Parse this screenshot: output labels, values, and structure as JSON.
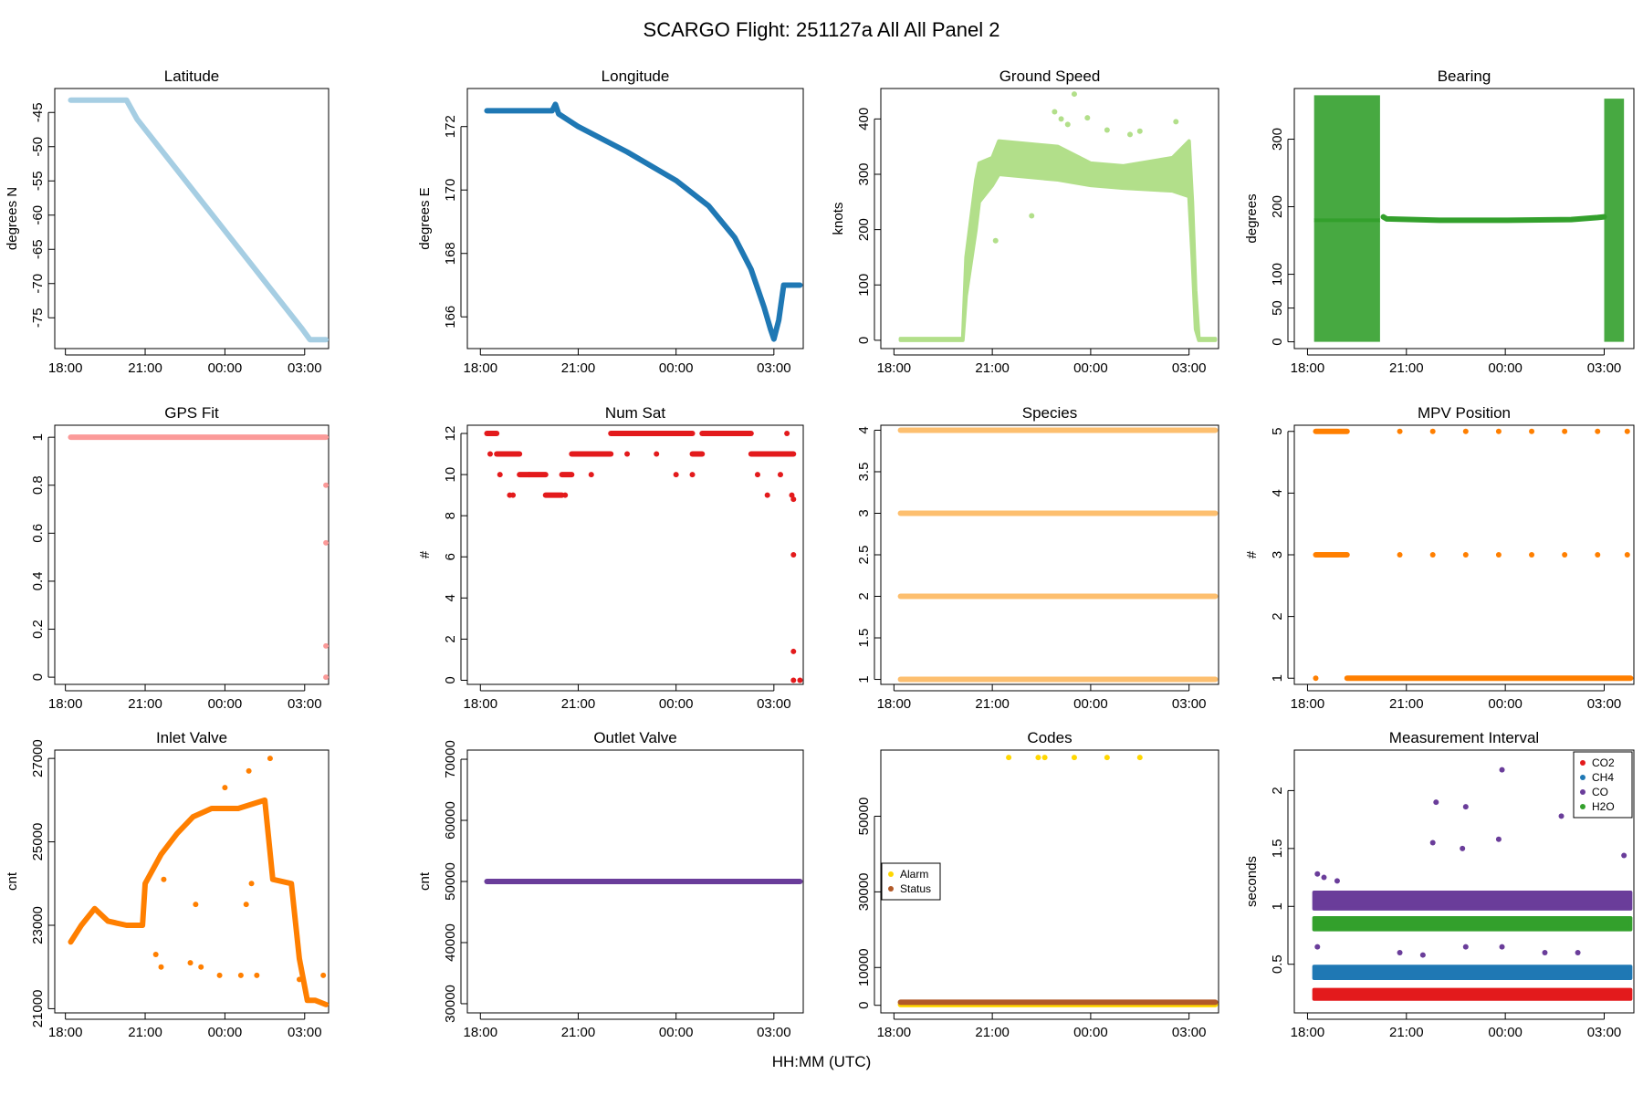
{
  "title": "SCARGO Flight: 251127a  All All  Panel 2",
  "xlabel": "HH:MM (UTC)",
  "x_ticks": [
    {
      "v": 0,
      "label": "18:00"
    },
    {
      "v": 3,
      "label": "21:00"
    },
    {
      "v": 6,
      "label": "00:00"
    },
    {
      "v": 9,
      "label": "03:00"
    }
  ],
  "xlim": [
    -0.4,
    9.9
  ],
  "chart_data": [
    {
      "id": "latitude",
      "type": "scatter",
      "title": "Latitude",
      "ylabel": "degrees N",
      "ylim": [
        -79.5,
        -41.5
      ],
      "yticks": [
        -75,
        -70,
        -65,
        -60,
        -55,
        -50,
        -45
      ],
      "color": "#a6cee3",
      "series": [
        {
          "name": "Latitude",
          "shape": "segments",
          "x": [
            0.2,
            2.3,
            2.7,
            8.9,
            9.2,
            9.8
          ],
          "y": [
            -43.2,
            -43.2,
            -46.0,
            -76.6,
            -78.2,
            -78.2
          ]
        }
      ]
    },
    {
      "id": "longitude",
      "type": "scatter",
      "title": "Longitude",
      "ylabel": "degrees E",
      "ylim": [
        165,
        173.2
      ],
      "yticks": [
        166,
        168,
        170,
        172
      ],
      "color": "#1f78b4",
      "series": [
        {
          "name": "Longitude",
          "shape": "segments",
          "x": [
            0.2,
            2.2,
            2.3,
            2.4,
            3.0,
            4.5,
            6.0,
            7.0,
            7.8,
            8.3,
            8.7,
            8.9,
            9.0,
            9.15,
            9.3,
            9.8
          ],
          "y": [
            172.5,
            172.5,
            172.7,
            172.4,
            172.0,
            171.2,
            170.3,
            169.5,
            168.5,
            167.5,
            166.3,
            165.6,
            165.3,
            165.9,
            167.0,
            167.0
          ]
        }
      ]
    },
    {
      "id": "ground_speed",
      "type": "scatter",
      "title": "Ground Speed",
      "ylabel": "knots",
      "ylim": [
        -15,
        455
      ],
      "yticks": [
        0,
        100,
        200,
        300,
        400
      ],
      "color": "#b2df8a",
      "series": [
        {
          "name": "Ground Speed",
          "shape": "band",
          "x": [
            0.2,
            2.1,
            2.2,
            2.5,
            2.6,
            3.0,
            3.2,
            5.0,
            6.0,
            7.0,
            8.5,
            9.0,
            9.1,
            9.2,
            9.3,
            9.8
          ],
          "lo": [
            0,
            0,
            80,
            200,
            250,
            280,
            300,
            290,
            280,
            275,
            270,
            260,
            150,
            20,
            0,
            0
          ],
          "hi": [
            3,
            3,
            150,
            290,
            320,
            330,
            360,
            350,
            320,
            315,
            330,
            360,
            250,
            90,
            3,
            3
          ]
        }
      ],
      "outliers": [
        [
          4.9,
          413
        ],
        [
          5.1,
          400
        ],
        [
          5.3,
          390
        ],
        [
          5.5,
          445
        ],
        [
          5.9,
          402
        ],
        [
          6.5,
          380
        ],
        [
          7.2,
          372
        ],
        [
          7.5,
          378
        ],
        [
          8.6,
          395
        ],
        [
          4.2,
          225
        ],
        [
          3.1,
          180
        ]
      ]
    },
    {
      "id": "bearing",
      "type": "scatter",
      "title": "Bearing",
      "ylabel": "degrees",
      "ylim": [
        -10,
        375
      ],
      "yticks": [
        0,
        50,
        100,
        200,
        300
      ],
      "color": "#33a02c",
      "series": [
        {
          "name": "Bearing",
          "shape": "segments",
          "x": [
            2.3,
            2.4,
            4.0,
            6.0,
            8.0,
            8.8,
            9.0
          ],
          "y": [
            185,
            182,
            180,
            180,
            181,
            184,
            185
          ]
        }
      ],
      "blocks": [
        [
          0.2,
          2.2,
          0,
          365
        ],
        [
          9.0,
          9.6,
          0,
          360
        ]
      ],
      "lines": [
        [
          0.2,
          2.2,
          180
        ]
      ]
    },
    {
      "id": "gps_fit",
      "type": "scatter",
      "title": "GPS Fit",
      "ylabel": "",
      "ylim": [
        -0.03,
        1.05
      ],
      "yticks": [
        0,
        0.2,
        0.4,
        0.6,
        0.8,
        1.0
      ],
      "color": "#fb9a99",
      "series": [
        {
          "name": "GPS Fit",
          "shape": "segments",
          "x": [
            0.2,
            9.8
          ],
          "y": [
            1.0,
            1.0
          ]
        }
      ],
      "outliers": [
        [
          9.8,
          0.8
        ],
        [
          9.8,
          0.56
        ],
        [
          9.8,
          0.13
        ],
        [
          9.8,
          0.0
        ]
      ]
    },
    {
      "id": "num_sat",
      "type": "scatter",
      "title": "Num Sat",
      "ylabel": "#",
      "ylim": [
        -0.2,
        12.4
      ],
      "yticks": [
        0,
        2,
        4,
        6,
        8,
        10,
        12
      ],
      "color": "#e31a1c",
      "steps": [
        [
          0.2,
          0.5,
          12
        ],
        [
          0.5,
          1.2,
          11
        ],
        [
          1.2,
          1.5,
          10
        ],
        [
          1.5,
          2.0,
          10
        ],
        [
          2.0,
          2.5,
          9
        ],
        [
          2.5,
          2.8,
          10
        ],
        [
          2.8,
          3.5,
          11
        ],
        [
          3.5,
          4.0,
          11
        ],
        [
          4.0,
          6.5,
          12
        ],
        [
          6.5,
          6.8,
          11
        ],
        [
          6.8,
          7.5,
          12
        ],
        [
          7.5,
          8.3,
          12
        ],
        [
          8.3,
          9.0,
          11
        ],
        [
          9.0,
          9.6,
          11
        ]
      ],
      "outliers": [
        [
          0.3,
          11
        ],
        [
          0.6,
          10
        ],
        [
          0.9,
          9
        ],
        [
          1.0,
          9
        ],
        [
          2.6,
          9
        ],
        [
          3.4,
          10
        ],
        [
          4.5,
          11
        ],
        [
          5.4,
          11
        ],
        [
          6.0,
          10
        ],
        [
          6.5,
          10
        ],
        [
          8.5,
          10
        ],
        [
          8.8,
          9
        ],
        [
          9.2,
          10
        ],
        [
          9.4,
          12
        ],
        [
          9.55,
          9
        ],
        [
          9.6,
          8.8
        ],
        [
          9.6,
          6.1
        ],
        [
          9.6,
          1.4
        ],
        [
          9.6,
          0
        ],
        [
          9.8,
          0
        ]
      ]
    },
    {
      "id": "species",
      "type": "scatter",
      "title": "Species",
      "ylabel": "",
      "ylim": [
        0.94,
        4.06
      ],
      "yticks": [
        1.0,
        1.5,
        2.0,
        2.5,
        3.0,
        3.5,
        4.0
      ],
      "color": "#fdbf6f",
      "series": [
        {
          "name": "1",
          "shape": "segments",
          "x": [
            0.2,
            9.8
          ],
          "y": [
            1,
            1
          ]
        },
        {
          "name": "2",
          "shape": "segments",
          "x": [
            0.2,
            9.8
          ],
          "y": [
            2,
            2
          ]
        },
        {
          "name": "3",
          "shape": "segments",
          "x": [
            0.2,
            9.8
          ],
          "y": [
            3,
            3
          ]
        },
        {
          "name": "4",
          "shape": "segments",
          "x": [
            0.2,
            9.8
          ],
          "y": [
            4,
            4
          ]
        }
      ]
    },
    {
      "id": "mpv_position",
      "type": "scatter",
      "title": "MPV Position",
      "ylabel": "#",
      "ylim": [
        0.9,
        5.1
      ],
      "yticks": [
        1,
        2,
        3,
        4,
        5
      ],
      "color": "#ff7f00",
      "series": [
        {
          "name": "1",
          "shape": "segments",
          "x": [
            1.2,
            9.8
          ],
          "y": [
            1,
            1
          ]
        },
        {
          "name": "3",
          "shape": "segments",
          "x": [
            0.25,
            1.2
          ],
          "y": [
            3,
            3
          ]
        },
        {
          "name": "5",
          "shape": "segments",
          "x": [
            0.25,
            1.2
          ],
          "y": [
            5,
            5
          ]
        }
      ],
      "outliers": [
        [
          0.25,
          1
        ],
        [
          2.8,
          3
        ],
        [
          2.8,
          5
        ],
        [
          3.8,
          3
        ],
        [
          3.8,
          5
        ],
        [
          4.8,
          3
        ],
        [
          4.8,
          5
        ],
        [
          5.8,
          3
        ],
        [
          5.8,
          5
        ],
        [
          6.8,
          3
        ],
        [
          6.8,
          5
        ],
        [
          7.8,
          3
        ],
        [
          7.8,
          5
        ],
        [
          8.8,
          3
        ],
        [
          8.8,
          5
        ],
        [
          9.7,
          3
        ],
        [
          9.7,
          5
        ]
      ]
    },
    {
      "id": "inlet_valve",
      "type": "scatter",
      "title": "Inlet Valve",
      "ylabel": "cnt",
      "ylim": [
        20900,
        27200
      ],
      "yticks": [
        21000,
        23000,
        25000,
        27000
      ],
      "color": "#ff7f00",
      "series": [
        {
          "name": "Inlet Valve",
          "shape": "segments",
          "x": [
            0.2,
            0.6,
            1.1,
            1.6,
            2.3,
            2.9,
            3.0,
            3.6,
            4.2,
            4.8,
            5.5,
            6.5,
            7.5,
            7.8,
            8.5,
            8.8,
            9.1,
            9.4,
            9.8
          ],
          "y": [
            22600,
            23000,
            23400,
            23100,
            23000,
            23000,
            24000,
            24700,
            25200,
            25600,
            25800,
            25800,
            26000,
            24100,
            24000,
            22200,
            21200,
            21200,
            21100
          ]
        }
      ],
      "outliers": [
        [
          3.4,
          22300
        ],
        [
          3.6,
          22000
        ],
        [
          4.7,
          22100
        ],
        [
          5.1,
          22000
        ],
        [
          5.8,
          21800
        ],
        [
          6.6,
          21800
        ],
        [
          7.2,
          21800
        ],
        [
          8.8,
          21700
        ],
        [
          9.7,
          21800
        ],
        [
          7.7,
          27000
        ],
        [
          6.0,
          26300
        ],
        [
          6.9,
          26700
        ],
        [
          4.9,
          23500
        ],
        [
          6.8,
          23500
        ],
        [
          7.0,
          24000
        ],
        [
          3.7,
          24100
        ]
      ]
    },
    {
      "id": "outlet_valve",
      "type": "scatter",
      "title": "Outlet Valve",
      "ylabel": "cnt",
      "ylim": [
        28500,
        71500
      ],
      "yticks": [
        30000,
        40000,
        50000,
        60000,
        70000
      ],
      "color": "#6a3d9a",
      "series": [
        {
          "name": "Outlet Valve",
          "shape": "segments",
          "x": [
            0.2,
            9.8
          ],
          "y": [
            50000,
            50000
          ]
        }
      ]
    },
    {
      "id": "codes",
      "type": "scatter",
      "title": "Codes",
      "ylabel": "",
      "ylim": [
        -2000,
        67500
      ],
      "yticks": [
        0,
        10000,
        30000,
        50000
      ],
      "color": "#ffd700",
      "series": [
        {
          "name": "Alarm",
          "color": "#ffd700",
          "shape": "segments",
          "x": [
            0.2,
            9.8
          ],
          "y": [
            200,
            200
          ]
        },
        {
          "name": "Status",
          "color": "#b15928",
          "shape": "segments",
          "x": [
            0.2,
            9.8
          ],
          "y": [
            800,
            800
          ]
        }
      ],
      "outliers": [
        [
          3.5,
          65535
        ],
        [
          4.4,
          65535
        ],
        [
          4.6,
          65535
        ],
        [
          5.5,
          65535
        ],
        [
          6.5,
          65535
        ],
        [
          7.5,
          65535
        ]
      ],
      "legend": {
        "position": "left",
        "entries": [
          {
            "label": "Alarm",
            "color": "#ffd700"
          },
          {
            "label": "Status",
            "color": "#b15928"
          }
        ]
      }
    },
    {
      "id": "measurement_interval",
      "type": "scatter",
      "title": "Measurement Interval",
      "ylabel": "seconds",
      "ylim": [
        0.08,
        2.35
      ],
      "yticks": [
        0.5,
        1.0,
        1.5,
        2.0
      ],
      "color": "#6a3d9a",
      "series": [
        {
          "name": "CO2",
          "color": "#e31a1c",
          "shape": "band",
          "x": [
            0.2,
            9.8
          ],
          "lo": [
            0.2,
            0.2
          ],
          "hi": [
            0.28,
            0.28
          ]
        },
        {
          "name": "CH4",
          "color": "#1f78b4",
          "shape": "band",
          "x": [
            0.2,
            9.8
          ],
          "lo": [
            0.38,
            0.38
          ],
          "hi": [
            0.48,
            0.48
          ]
        },
        {
          "name": "CO",
          "color": "#6a3d9a",
          "shape": "band",
          "x": [
            0.2,
            9.8
          ],
          "lo": [
            0.98,
            0.98
          ],
          "hi": [
            1.12,
            1.12
          ]
        },
        {
          "name": "H2O",
          "color": "#33a02c",
          "shape": "band",
          "x": [
            0.2,
            9.8
          ],
          "lo": [
            0.8,
            0.8
          ],
          "hi": [
            0.9,
            0.9
          ]
        }
      ],
      "outliers": [
        [
          3.9,
          1.9
        ],
        [
          4.8,
          1.86
        ],
        [
          5.9,
          2.18
        ],
        [
          7.7,
          1.78
        ],
        [
          9.6,
          1.44
        ],
        [
          3.8,
          1.55
        ],
        [
          4.7,
          1.5
        ],
        [
          5.8,
          1.58
        ],
        [
          0.3,
          1.28
        ],
        [
          0.5,
          1.25
        ],
        [
          0.9,
          1.22
        ],
        [
          5.9,
          0.65
        ],
        [
          4.8,
          0.65
        ],
        [
          3.5,
          0.58
        ],
        [
          0.3,
          0.65
        ],
        [
          7.2,
          0.6
        ],
        [
          8.2,
          0.6
        ],
        [
          2.8,
          0.6
        ]
      ],
      "legend": {
        "position": "top-right",
        "entries": [
          {
            "label": "CO2",
            "color": "#e31a1c"
          },
          {
            "label": "CH4",
            "color": "#1f78b4"
          },
          {
            "label": "CO",
            "color": "#6a3d9a"
          },
          {
            "label": "H2O",
            "color": "#33a02c"
          }
        ]
      }
    }
  ]
}
